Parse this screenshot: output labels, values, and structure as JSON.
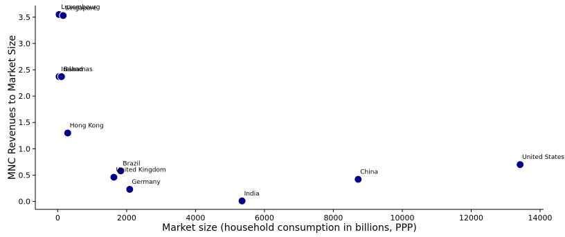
{
  "chart_data": {
    "type": "scatter",
    "title": "",
    "xlabel": "Market size (household consumption in billions, PPP)",
    "ylabel": "MNC Revenues to Market Size",
    "xlim": [
      -650,
      14100
    ],
    "ylim": [
      -0.15,
      3.72
    ],
    "xticks": [
      0,
      2000,
      4000,
      6000,
      8000,
      10000,
      12000,
      14000
    ],
    "yticks": [
      0.0,
      0.5,
      1.0,
      1.5,
      2.0,
      2.5,
      3.0,
      3.5
    ],
    "grid": false,
    "legend": "none",
    "marker_color": "#00008b",
    "points": [
      {
        "label": "Luxembourg",
        "x": 40,
        "y": 3.55
      },
      {
        "label": "Singapore",
        "x": 160,
        "y": 3.53
      },
      {
        "label": "Ireland",
        "x": 40,
        "y": 2.37
      },
      {
        "label": "Bahamas",
        "x": 110,
        "y": 2.37
      },
      {
        "label": "Hong Kong",
        "x": 290,
        "y": 1.3
      },
      {
        "label": "Brazil",
        "x": 1830,
        "y": 0.58
      },
      {
        "label": "United Kingdom",
        "x": 1630,
        "y": 0.46
      },
      {
        "label": "Germany",
        "x": 2090,
        "y": 0.23
      },
      {
        "label": "India",
        "x": 5350,
        "y": 0.01
      },
      {
        "label": "China",
        "x": 8720,
        "y": 0.42
      },
      {
        "label": "United States",
        "x": 13420,
        "y": 0.7
      }
    ]
  }
}
